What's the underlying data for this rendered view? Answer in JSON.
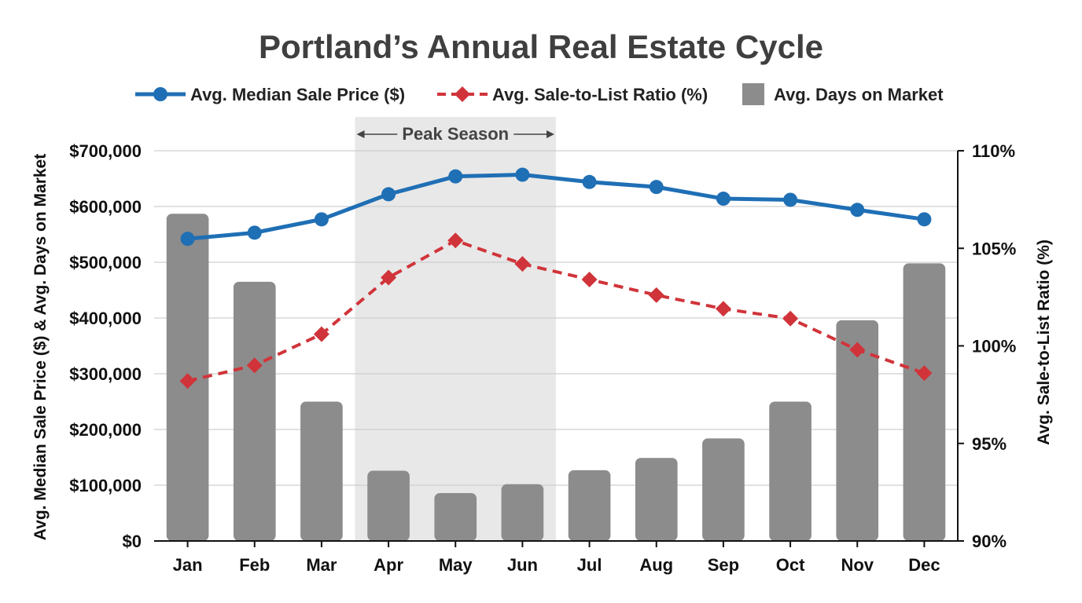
{
  "chart_data": {
    "type": "bar-line-combo",
    "title": "Portland’s Annual Real Estate Cycle",
    "categories": [
      "Jan",
      "Feb",
      "Mar",
      "Apr",
      "May",
      "Jun",
      "Jul",
      "Aug",
      "Sep",
      "Oct",
      "Nov",
      "Dec"
    ],
    "series": [
      {
        "name": "Avg. Median Sale Price ($)",
        "kind": "line",
        "axis": "left",
        "color": "#1f6fb5",
        "values": [
          542000,
          553000,
          577000,
          622000,
          654000,
          657000,
          644000,
          635000,
          614000,
          612000,
          594000,
          577000
        ]
      },
      {
        "name": "Avg. Sale-to-List Ratio (%)",
        "kind": "line-dashed",
        "axis": "right",
        "color": "#d0343a",
        "values": [
          98.2,
          99.0,
          100.6,
          103.5,
          105.4,
          104.2,
          103.4,
          102.6,
          101.9,
          101.4,
          99.8,
          98.6
        ]
      },
      {
        "name": "Avg. Days on Market",
        "kind": "bar",
        "axis": "left",
        "color": "#8c8c8c",
        "values": [
          587000,
          465000,
          250000,
          126000,
          86000,
          102000,
          127000,
          149000,
          184000,
          250000,
          396000,
          498000
        ]
      }
    ],
    "y_left": {
      "label": "Avg. Median Sale Price ($) & Avg. Days on Market",
      "range": [
        0,
        700000
      ],
      "ticks": [
        0,
        100000,
        200000,
        300000,
        400000,
        500000,
        600000,
        700000
      ],
      "tick_labels": [
        "$0",
        "$100,000",
        "$200,000",
        "$300,000",
        "$400,000",
        "$500,000",
        "$600,000",
        "$700,000"
      ]
    },
    "y_right": {
      "label": "Avg. Sale-to-List Ratio (%)",
      "range": [
        90,
        110
      ],
      "ticks": [
        90,
        95,
        100,
        105,
        110
      ],
      "tick_labels": [
        "90%",
        "95%",
        "100%",
        "105%",
        "110%"
      ]
    },
    "annotation": {
      "label": "Peak Season",
      "from": "Apr",
      "to": "Jun",
      "shade_color": "#e8e8e8"
    },
    "grid": "horizontal",
    "legend": "top-center"
  }
}
